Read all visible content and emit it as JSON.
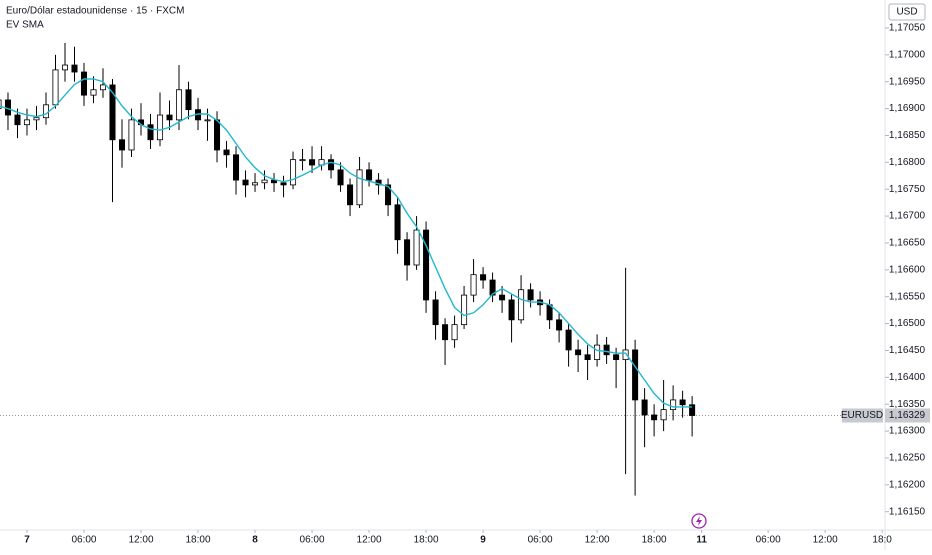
{
  "chart_data": {
    "type": "candlestick",
    "title": "Euro/Dólar estadounidense · 15 · FXCM",
    "currency": "USD",
    "x": [
      -3,
      -2,
      -1,
      0,
      1,
      2,
      3,
      4,
      5,
      6,
      7,
      8,
      9,
      10,
      11,
      12,
      13,
      14,
      15,
      16,
      17,
      18,
      19,
      20,
      21,
      22,
      23,
      24,
      25,
      26,
      27,
      28,
      29,
      30,
      31,
      32,
      33,
      34,
      35,
      36,
      37,
      38,
      39,
      40,
      41,
      42,
      43,
      44,
      45,
      46,
      47,
      48,
      49,
      50,
      51,
      52,
      53,
      54,
      55,
      56,
      57,
      58,
      59,
      60,
      61,
      62,
      63,
      64,
      65,
      66,
      67,
      68,
      69,
      70
    ],
    "open": [
      1.169,
      1.16916,
      1.16888,
      1.1687,
      1.16879,
      1.16883,
      1.16907,
      1.16972,
      1.16981,
      1.16968,
      1.16925,
      1.16935,
      1.16944,
      1.16842,
      1.16823,
      1.16879,
      1.1687,
      1.16842,
      1.16888,
      1.16879,
      1.16935,
      1.16898,
      1.16879,
      1.16879,
      1.16823,
      1.16814,
      1.16767,
      1.16758,
      1.16762,
      1.16767,
      1.16762,
      1.16758,
      1.16805,
      1.16805,
      1.16795,
      1.16805,
      1.16786,
      1.16758,
      1.16721,
      1.16786,
      1.16767,
      1.16758,
      1.16721,
      1.16656,
      1.16609,
      1.16674,
      1.16544,
      1.16498,
      1.1647,
      1.16498,
      1.16553,
      1.16591,
      1.16581,
      1.16553,
      1.16544,
      1.16507,
      1.16563,
      1.16544,
      1.16535,
      1.16507,
      1.16488,
      1.16451,
      1.16442,
      1.16433,
      1.1646,
      1.16442,
      1.16433,
      1.16451,
      1.16358,
      1.1633,
      1.16321,
      1.1634,
      1.16358,
      1.16349
    ],
    "high": [
      1.16935,
      1.1693,
      1.169,
      1.169,
      1.16905,
      1.1693,
      1.17,
      1.17022,
      1.17015,
      1.16985,
      1.1696,
      1.16975,
      1.16955,
      1.1688,
      1.169,
      1.1691,
      1.1689,
      1.1693,
      1.16915,
      1.16981,
      1.1695,
      1.1692,
      1.169,
      1.16895,
      1.1684,
      1.1683,
      1.16785,
      1.1678,
      1.16785,
      1.1678,
      1.16775,
      1.1682,
      1.16825,
      1.1683,
      1.1683,
      1.16815,
      1.168,
      1.1677,
      1.1681,
      1.168,
      1.1678,
      1.1677,
      1.16735,
      1.1667,
      1.167,
      1.1669,
      1.1656,
      1.1651,
      1.16515,
      1.1657,
      1.1662,
      1.16605,
      1.16595,
      1.1657,
      1.16555,
      1.1659,
      1.16575,
      1.1656,
      1.16545,
      1.1652,
      1.165,
      1.1647,
      1.1646,
      1.1648,
      1.16475,
      1.16455,
      1.16604,
      1.1647,
      1.1638,
      1.1635,
      1.16395,
      1.16385,
      1.16375,
      1.16365
    ],
    "low": [
      1.1688,
      1.1686,
      1.16845,
      1.1685,
      1.1686,
      1.1687,
      1.169,
      1.1695,
      1.1695,
      1.16905,
      1.1691,
      1.1692,
      1.16726,
      1.1679,
      1.1681,
      1.1685,
      1.16825,
      1.1683,
      1.1686,
      1.1686,
      1.1688,
      1.1686,
      1.1684,
      1.168,
      1.1679,
      1.1674,
      1.16735,
      1.16745,
      1.1675,
      1.16745,
      1.16735,
      1.1675,
      1.16785,
      1.1678,
      1.16785,
      1.1677,
      1.16745,
      1.167,
      1.16715,
      1.16755,
      1.1674,
      1.167,
      1.1663,
      1.1658,
      1.166,
      1.1652,
      1.1647,
      1.16423,
      1.16455,
      1.1649,
      1.1654,
      1.16565,
      1.1654,
      1.1652,
      1.16465,
      1.165,
      1.1653,
      1.16515,
      1.1649,
      1.16465,
      1.1642,
      1.1641,
      1.16395,
      1.1642,
      1.16425,
      1.1638,
      1.1622,
      1.1618,
      1.1627,
      1.1629,
      1.163,
      1.1632,
      1.16325,
      1.1629
    ],
    "close": [
      1.16916,
      1.16888,
      1.1687,
      1.16879,
      1.16883,
      1.16907,
      1.16972,
      1.16981,
      1.16968,
      1.16925,
      1.16935,
      1.16944,
      1.16842,
      1.16823,
      1.16879,
      1.1687,
      1.16842,
      1.16888,
      1.16879,
      1.16935,
      1.16898,
      1.16879,
      1.16879,
      1.16823,
      1.16814,
      1.16767,
      1.16758,
      1.16762,
      1.16767,
      1.16762,
      1.16758,
      1.16805,
      1.16805,
      1.16795,
      1.16805,
      1.16786,
      1.16758,
      1.16721,
      1.16786,
      1.16767,
      1.16758,
      1.16721,
      1.16656,
      1.16609,
      1.16674,
      1.16544,
      1.16498,
      1.1647,
      1.16498,
      1.16553,
      1.16591,
      1.16581,
      1.16553,
      1.16544,
      1.16507,
      1.16563,
      1.16544,
      1.16535,
      1.16507,
      1.16488,
      1.16451,
      1.16442,
      1.16433,
      1.1646,
      1.16442,
      1.16433,
      1.16451,
      1.16358,
      1.1633,
      1.16321,
      1.1634,
      1.16358,
      1.16349,
      1.16329
    ],
    "series": [
      {
        "name": "EV SMA",
        "color": "#22b8cf",
        "values": [
          1.16905,
          1.169,
          1.16893,
          1.16888,
          1.16885,
          1.1689,
          1.16905,
          1.16925,
          1.16945,
          1.16955,
          1.16955,
          1.1695,
          1.1693,
          1.16905,
          1.16885,
          1.1687,
          1.16862,
          1.1686,
          1.16865,
          1.16875,
          1.16885,
          1.1689,
          1.1689,
          1.16878,
          1.1686,
          1.16835,
          1.1681,
          1.1679,
          1.16775,
          1.16768,
          1.16764,
          1.16768,
          1.16776,
          1.16785,
          1.16795,
          1.168,
          1.16795,
          1.1678,
          1.1677,
          1.16765,
          1.1676,
          1.16755,
          1.16735,
          1.16705,
          1.1668,
          1.16645,
          1.16605,
          1.16565,
          1.1653,
          1.16515,
          1.1652,
          1.16535,
          1.16555,
          1.16565,
          1.16555,
          1.16545,
          1.1654,
          1.1654,
          1.16535,
          1.1652,
          1.165,
          1.1648,
          1.16462,
          1.1645,
          1.16448,
          1.16445,
          1.16445,
          1.1642,
          1.16395,
          1.1637,
          1.16352,
          1.16345,
          1.16345,
          1.16345
        ]
      }
    ],
    "up_color": "#ffffff",
    "down_color": "#000000",
    "wick_color": "#000000",
    "last_price": {
      "symbol": "EURUSD",
      "value": 1.16329,
      "label": "1,16329"
    },
    "xlim": [
      -2.84,
      90.3
    ],
    "ylim": [
      1.16116,
      1.17102
    ],
    "grid": false,
    "xticks": [
      {
        "value": 0,
        "label": "7"
      },
      {
        "value": 6,
        "label": "06:00"
      },
      {
        "value": 12,
        "label": "12:00"
      },
      {
        "value": 18,
        "label": "18:00"
      },
      {
        "value": 24,
        "label": "8"
      },
      {
        "value": 30,
        "label": "06:00"
      },
      {
        "value": 36,
        "label": "12:00"
      },
      {
        "value": 42,
        "label": "18:00"
      },
      {
        "value": 48,
        "label": "9"
      },
      {
        "value": 54,
        "label": "06:00"
      },
      {
        "value": 60,
        "label": "12:00"
      },
      {
        "value": 66,
        "label": "18:00"
      },
      {
        "value": 71,
        "label": "11"
      },
      {
        "value": 78,
        "label": "06:00"
      },
      {
        "value": 84,
        "label": "12:00"
      },
      {
        "value": 90,
        "label": "18:0"
      }
    ],
    "yticks": [
      {
        "value": 1.1615,
        "label": "1,16150"
      },
      {
        "value": 1.162,
        "label": "1,16200"
      },
      {
        "value": 1.1625,
        "label": "1,16250"
      },
      {
        "value": 1.163,
        "label": "1,16300"
      },
      {
        "value": 1.1635,
        "label": "1,16350"
      },
      {
        "value": 1.164,
        "label": "1,16400"
      },
      {
        "value": 1.1645,
        "label": "1,16450"
      },
      {
        "value": 1.165,
        "label": "1,16500"
      },
      {
        "value": 1.1655,
        "label": "1,16550"
      },
      {
        "value": 1.166,
        "label": "1,16600"
      },
      {
        "value": 1.1665,
        "label": "1,16650"
      },
      {
        "value": 1.167,
        "label": "1,16700"
      },
      {
        "value": 1.1675,
        "label": "1,16750"
      },
      {
        "value": 1.168,
        "label": "1,16800"
      },
      {
        "value": 1.1685,
        "label": "1,16850"
      },
      {
        "value": 1.169,
        "label": "1,16900"
      },
      {
        "value": 1.1695,
        "label": "1,16950"
      },
      {
        "value": 1.17,
        "label": "1,17000"
      },
      {
        "value": 1.1705,
        "label": "1,17050"
      }
    ]
  }
}
